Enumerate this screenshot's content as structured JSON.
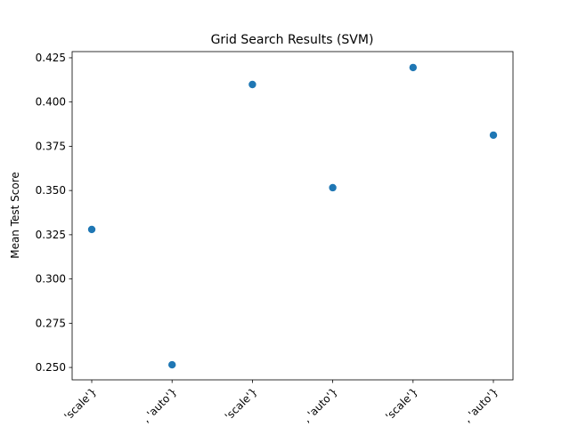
{
  "chart_data": {
    "type": "scatter",
    "title": "Grid Search Results (SVM)",
    "y_label": "Mean Test Score",
    "categories": [
      "'scale'}",
      ", 'auto'}",
      "'scale'}",
      ", 'auto'}",
      "'scale'}",
      ", 'auto'}"
    ],
    "values": [
      0.328,
      0.2515,
      0.4099,
      0.3516,
      0.4195,
      0.3813
    ],
    "color": "#1f77b4",
    "ylim": [
      0.243,
      0.4285
    ],
    "yticks": [
      {
        "value": 0.25,
        "label": "0.250"
      },
      {
        "value": 0.275,
        "label": "0.275"
      },
      {
        "value": 0.3,
        "label": "0.300"
      },
      {
        "value": 0.325,
        "label": "0.325"
      },
      {
        "value": 0.35,
        "label": "0.350"
      },
      {
        "value": 0.375,
        "label": "0.375"
      },
      {
        "value": 0.4,
        "label": "0.400"
      },
      {
        "value": 0.425,
        "label": "0.425"
      }
    ]
  }
}
